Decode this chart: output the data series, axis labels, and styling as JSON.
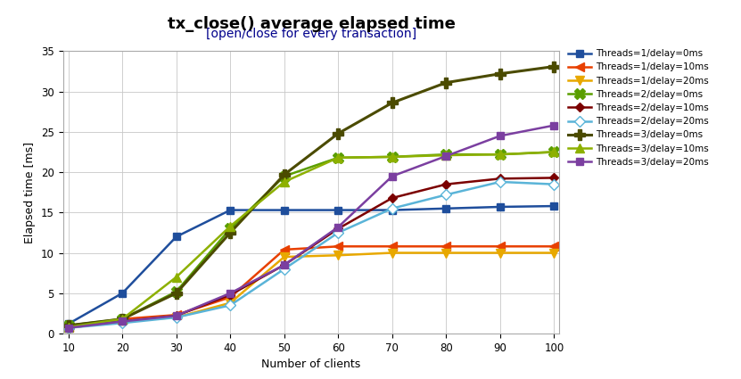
{
  "title": "tx_close() average elapsed time",
  "subtitle": "[open/close for every transaction]",
  "xlabel": "Number of clients",
  "ylabel": "Elapsed time [ms]",
  "x": [
    10,
    20,
    30,
    40,
    50,
    60,
    70,
    80,
    90,
    100
  ],
  "ylim": [
    0,
    35
  ],
  "series": [
    {
      "label": "Threads=1/delay=0ms",
      "color": "#1f4e9c",
      "marker": "s",
      "markersize": 6,
      "linewidth": 1.8,
      "markerfacecolor": "#1f4e9c",
      "markeredgecolor": "#1f4e9c",
      "values": [
        1.2,
        5.0,
        12.0,
        15.3,
        15.3,
        15.3,
        15.3,
        15.5,
        15.7,
        15.8
      ]
    },
    {
      "label": "Threads=1/delay=10ms",
      "color": "#e84000",
      "marker": "<",
      "markersize": 7,
      "linewidth": 1.8,
      "markerfacecolor": "#e84000",
      "markeredgecolor": "#e84000",
      "values": [
        0.8,
        1.8,
        2.3,
        4.5,
        10.4,
        10.8,
        10.8,
        10.8,
        10.8,
        10.8
      ]
    },
    {
      "label": "Threads=1/delay=20ms",
      "color": "#e8a800",
      "marker": "v",
      "markersize": 7,
      "linewidth": 1.8,
      "markerfacecolor": "#e8a800",
      "markeredgecolor": "#e8a800",
      "values": [
        0.7,
        1.5,
        2.0,
        3.8,
        9.5,
        9.7,
        10.0,
        10.0,
        10.0,
        10.0
      ]
    },
    {
      "label": "Threads=2/delay=0ms",
      "color": "#5a9e00",
      "marker": "X",
      "markersize": 8,
      "linewidth": 1.8,
      "markerfacecolor": "#5a9e00",
      "markeredgecolor": "#5a9e00",
      "values": [
        1.0,
        1.8,
        5.2,
        13.0,
        19.5,
        21.8,
        21.9,
        22.2,
        22.2,
        22.5
      ]
    },
    {
      "label": "Threads=2/delay=10ms",
      "color": "#7b0000",
      "marker": "D",
      "markersize": 5,
      "linewidth": 1.8,
      "markerfacecolor": "#7b0000",
      "markeredgecolor": "#7b0000",
      "values": [
        0.8,
        1.5,
        2.2,
        4.8,
        8.5,
        13.0,
        16.8,
        18.5,
        19.2,
        19.3
      ]
    },
    {
      "label": "Threads=2/delay=20ms",
      "color": "#5ab4d8",
      "marker": "D",
      "markersize": 6,
      "linewidth": 1.8,
      "markerfacecolor": "#ffffff",
      "markeredgecolor": "#5ab4d8",
      "values": [
        0.7,
        1.3,
        2.0,
        3.5,
        8.0,
        12.5,
        15.5,
        17.2,
        18.8,
        18.5
      ]
    },
    {
      "label": "Threads=3/delay=0ms",
      "color": "#4b4b00",
      "marker": "P",
      "markersize": 8,
      "linewidth": 2.2,
      "markerfacecolor": "#4b4b00",
      "markeredgecolor": "#4b4b00",
      "values": [
        1.0,
        1.8,
        5.0,
        12.5,
        19.7,
        24.8,
        28.6,
        31.1,
        32.2,
        33.1
      ]
    },
    {
      "label": "Threads=3/delay=10ms",
      "color": "#8db000",
      "marker": "^",
      "markersize": 7,
      "linewidth": 1.8,
      "markerfacecolor": "#8db000",
      "markeredgecolor": "#8db000",
      "values": [
        0.8,
        1.8,
        7.0,
        13.3,
        18.8,
        21.8,
        21.9,
        22.1,
        22.2,
        22.5
      ]
    },
    {
      "label": "Threads=3/delay=20ms",
      "color": "#7b3fa0",
      "marker": "s",
      "markersize": 6,
      "linewidth": 1.8,
      "markerfacecolor": "#7b3fa0",
      "markeredgecolor": "#7b3fa0",
      "values": [
        0.7,
        1.5,
        2.2,
        5.0,
        8.5,
        13.2,
        19.5,
        22.0,
        24.5,
        25.8
      ]
    }
  ],
  "title_fontsize": 13,
  "subtitle_fontsize": 10,
  "subtitle_color": "#00008B",
  "axis_label_fontsize": 9,
  "tick_fontsize": 8.5,
  "legend_fontsize": 7.5,
  "background_color": "#ffffff",
  "grid_color": "#c8c8c8"
}
